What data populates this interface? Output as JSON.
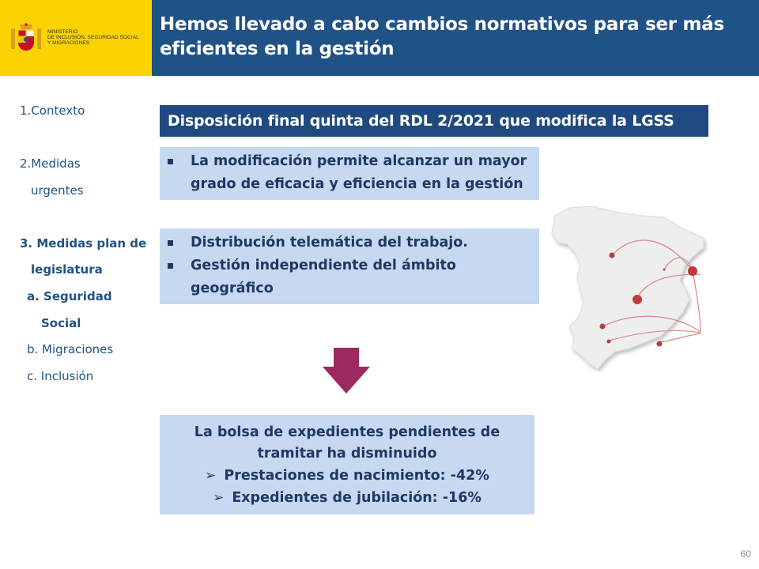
{
  "header": {
    "ministry_lines": [
      "Ministerio",
      "de Inclusión, Seguridad Social",
      "y Migraciones"
    ],
    "title": "Hemos llevado a cabo cambios normativos para ser más eficientes en la gestión"
  },
  "sidebar": {
    "items": [
      {
        "label": "1.Contexto"
      },
      {
        "label": "2.Medidas"
      },
      {
        "label": "urgentes"
      },
      {
        "label": "3. Medidas plan de"
      },
      {
        "label": "legislatura"
      },
      {
        "label": "a. Seguridad"
      },
      {
        "label": "Social"
      },
      {
        "label": "b. Migraciones"
      },
      {
        "label": "c.  Inclusión"
      }
    ]
  },
  "main": {
    "heading": "Disposición final quinta del RDL 2/2021 que modifica la LGSS",
    "box1": {
      "bullets": [
        "La modificación permite alcanzar un mayor grado de eficacia y eficiencia en la gestión"
      ]
    },
    "box2": {
      "bullets": [
        "Distribución telemática del trabajo.",
        "Gestión independiente del ámbito geográfico"
      ]
    },
    "box3": {
      "line1": "La bolsa de expedientes pendientes de",
      "line2": "tramitar ha disminuido",
      "items": [
        "Prestaciones de nacimiento: -42%",
        "Expedientes de jubilación: -16%"
      ]
    }
  },
  "colors": {
    "header_blue": "#1f5286",
    "logo_yellow": "#fcd200",
    "box_fill": "#c6d9f1",
    "arrow": "#9c2a5e",
    "map_dots": "#c0393b"
  },
  "icons": {
    "bullet": "square-bullet-icon",
    "item_marker": "arrowhead-bullet-icon",
    "down": "down-arrow-icon"
  },
  "page_number": "60"
}
